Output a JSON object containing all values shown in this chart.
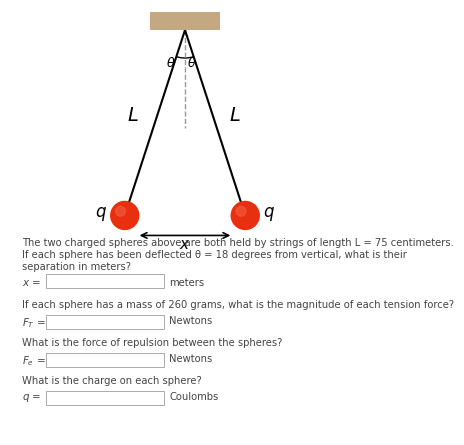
{
  "bg_color": "#ffffff",
  "ceiling_color": "#c4a882",
  "theta_deg": 18,
  "sphere_color": "#e83010",
  "sphere_color_highlight": "#f06040",
  "string_color": "#000000",
  "dashed_color": "#999999",
  "text_color": "#444444",
  "input_border_color": "#aaaaaa",
  "question1": "The two charged spheres above are both held by strings of length L = 75 centimeters.",
  "question1b": "If each sphere has been deflected θ = 18 degrees from vertical, what is their",
  "question1c": "separation in meters?",
  "label_x": "x =",
  "unit_x": "meters",
  "question2": "If each sphere has a mass of 260 grams, what is the magnitude of each tension force?",
  "unit_FT": "Newtons",
  "question3": "What is the force of repulsion between the spheres?",
  "unit_Fe": "Newtons",
  "question4": "What is the charge on each sphere?",
  "unit_q": "Coulombs"
}
